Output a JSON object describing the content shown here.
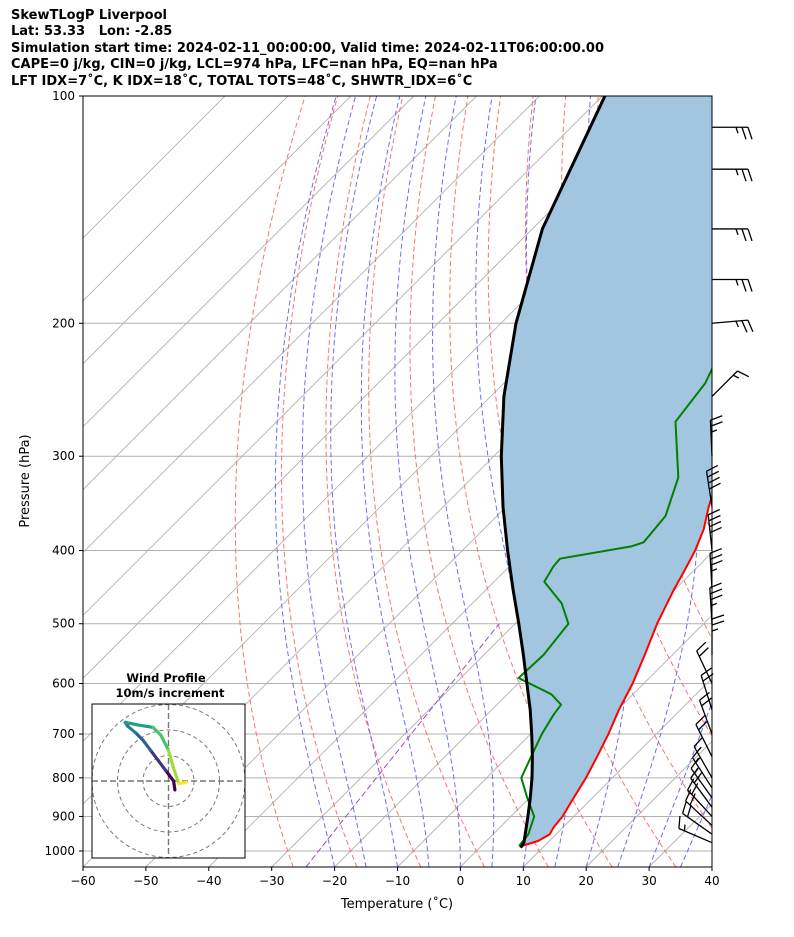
{
  "header": {
    "line1": "SkewTLogP Liverpool",
    "line2": "Lat: 53.33   Lon: -2.85",
    "line3": "Simulation start time: 2024-02-11_00:00:00, Valid time: 2024-02-11T06:00:00.00",
    "line4": "CAPE=0 j/kg, CIN=0 j/kg, LCL=974 hPa, LFC=nan hPa, EQ=nan hPa",
    "line5": "LFT IDX=7˚C, K IDX=18˚C, TOTAL TOTS=48˚C, SHWTR_IDX=6˚C"
  },
  "inset": {
    "title": "Wind Profile",
    "subtitle": "10m/s increment"
  },
  "colors": {
    "temperature": "#ff0000",
    "dewpoint": "#008000",
    "parcel": "#000000",
    "shading": "#a2c6e0",
    "dry_adiabat": "#ff7070",
    "moist_adiabat": "#6b6bff",
    "mixing_ratio": "#9b47c6",
    "isotherm": "#b0b0b0",
    "isobar": "#b0b0b0"
  },
  "chart_data": {
    "type": "line",
    "chart_kind": "skew-T log-P",
    "xlabel": "Temperature (˚C)",
    "ylabel": "Pressure (hPa)",
    "xlim": [
      -60,
      40
    ],
    "ylim": [
      1050,
      100
    ],
    "y_scale": "log",
    "x_ticks": [
      -60,
      -50,
      -40,
      -30,
      -20,
      -10,
      0,
      10,
      20,
      30,
      40
    ],
    "x_tick_labels": [
      "−60",
      "−50",
      "−40",
      "−30",
      "−20",
      "−10",
      "0",
      "10",
      "20",
      "30",
      "40"
    ],
    "y_ticks": [
      1000,
      900,
      800,
      700,
      600,
      500,
      400,
      300,
      200,
      100
    ],
    "y_tick_labels": [
      "1000",
      "900",
      "800",
      "700",
      "600",
      "500",
      "400",
      "300",
      "200",
      "100"
    ],
    "grid": true,
    "series": [
      {
        "name": "Temperature",
        "color": "#ff0000",
        "points": [
          [
            985,
            6.4
          ],
          [
            970,
            8.2
          ],
          [
            950,
            9.0
          ],
          [
            930,
            8.5
          ],
          [
            900,
            8.2
          ],
          [
            850,
            7.0
          ],
          [
            800,
            5.8
          ],
          [
            750,
            4.2
          ],
          [
            700,
            2.4
          ],
          [
            650,
            0.2
          ],
          [
            600,
            -1.8
          ],
          [
            550,
            -4.4
          ],
          [
            500,
            -7.4
          ],
          [
            450,
            -10.2
          ],
          [
            425,
            -11.5
          ],
          [
            400,
            -13.0
          ],
          [
            375,
            -15.0
          ],
          [
            350,
            -17.8
          ],
          [
            310,
            -22.1
          ],
          [
            300,
            -22.7
          ],
          [
            270,
            -25.6
          ],
          [
            250,
            -25.5
          ],
          [
            230,
            -24.6
          ],
          [
            210,
            -25.1
          ],
          [
            200,
            -25.2
          ],
          [
            185,
            -24.3
          ],
          [
            170,
            -22.8
          ],
          [
            150,
            -20.8
          ],
          [
            130,
            -19.7
          ],
          [
            115,
            -19.0
          ],
          [
            100,
            -18.3
          ]
        ]
      },
      {
        "name": "Dewpoint",
        "color": "#008000",
        "points": [
          [
            985,
            6.0
          ],
          [
            950,
            5.6
          ],
          [
            900,
            3.7
          ],
          [
            850,
            -0.4
          ],
          [
            800,
            -4.5
          ],
          [
            750,
            -6.3
          ],
          [
            700,
            -8.2
          ],
          [
            660,
            -9.4
          ],
          [
            640,
            -9.8
          ],
          [
            620,
            -13.0
          ],
          [
            590,
            -20.8
          ],
          [
            550,
            -20.5
          ],
          [
            500,
            -21.5
          ],
          [
            470,
            -25.8
          ],
          [
            440,
            -32.0
          ],
          [
            420,
            -33.0
          ],
          [
            410,
            -33.2
          ],
          [
            395,
            -23.8
          ],
          [
            390,
            -22.5
          ],
          [
            360,
            -23.2
          ],
          [
            320,
            -27.3
          ],
          [
            270,
            -36.6
          ],
          [
            240,
            -38.0
          ],
          [
            220,
            -40.4
          ],
          [
            200,
            -43.3
          ],
          [
            190,
            -45.9
          ],
          [
            175,
            -49.3
          ],
          [
            160,
            -51.7
          ],
          [
            140,
            -55.0
          ],
          [
            120,
            -58.0
          ],
          [
            100,
            -60.0
          ]
        ]
      },
      {
        "name": "Parcel",
        "color": "#000000",
        "points": [
          [
            990,
            6.5
          ],
          [
            974,
            6.2
          ],
          [
            900,
            2.7
          ],
          [
            850,
            0.1
          ],
          [
            800,
            -2.8
          ],
          [
            750,
            -6.1
          ],
          [
            700,
            -9.8
          ],
          [
            650,
            -13.9
          ],
          [
            600,
            -18.6
          ],
          [
            550,
            -23.7
          ],
          [
            500,
            -29.4
          ],
          [
            450,
            -35.8
          ],
          [
            400,
            -42.8
          ],
          [
            350,
            -50.5
          ],
          [
            300,
            -58.8
          ],
          [
            250,
            -67.9
          ],
          [
            200,
            -77.6
          ],
          [
            150,
            -88.4
          ],
          [
            100,
            -99.6
          ]
        ]
      }
    ],
    "wind_barbs": [
      {
        "pressure": 975,
        "u": -14,
        "v": 6
      },
      {
        "pressure": 950,
        "u": -17,
        "v": 12
      },
      {
        "pressure": 925,
        "u": -14,
        "v": 13
      },
      {
        "pressure": 900,
        "u": -12,
        "v": 13
      },
      {
        "pressure": 875,
        "u": -11,
        "v": 15
      },
      {
        "pressure": 850,
        "u": -10,
        "v": 14
      },
      {
        "pressure": 825,
        "u": -9,
        "v": 14
      },
      {
        "pressure": 800,
        "u": -8,
        "v": 14
      },
      {
        "pressure": 750,
        "u": -8,
        "v": 16
      },
      {
        "pressure": 700,
        "u": -7,
        "v": 19
      },
      {
        "pressure": 650,
        "u": -6,
        "v": 19
      },
      {
        "pressure": 600,
        "u": -8,
        "v": 17
      },
      {
        "pressure": 550,
        "u": 0,
        "v": 24
      },
      {
        "pressure": 500,
        "u": -2,
        "v": 33
      },
      {
        "pressure": 450,
        "u": -2,
        "v": 36
      },
      {
        "pressure": 400,
        "u": -4,
        "v": 38
      },
      {
        "pressure": 350,
        "u": -6,
        "v": 39
      },
      {
        "pressure": 300,
        "u": -1,
        "v": 23
      },
      {
        "pressure": 250,
        "u": 12,
        "v": 12
      },
      {
        "pressure": 200,
        "u": 23,
        "v": 2
      },
      {
        "pressure": 175,
        "u": 24,
        "v": 0
      },
      {
        "pressure": 150,
        "u": 24,
        "v": 0
      },
      {
        "pressure": 125,
        "u": 24,
        "v": 0
      },
      {
        "pressure": 110,
        "u": 24,
        "v": 0
      }
    ],
    "hodograph": {
      "rings": [
        10,
        20,
        30
      ],
      "points": [
        [
          2.5,
          -3.5
        ],
        [
          2.0,
          0.0
        ],
        [
          -1.0,
          4.0
        ],
        [
          -4.0,
          8.0
        ],
        [
          -7.0,
          12.0
        ],
        [
          -10.0,
          16.0
        ],
        [
          -13.0,
          19.0
        ],
        [
          -16.0,
          21.5
        ],
        [
          -17.0,
          23.0
        ],
        [
          -12.0,
          22.0
        ],
        [
          -6.0,
          21.0
        ],
        [
          -3.0,
          18.0
        ],
        [
          0.0,
          12.0
        ],
        [
          2.0,
          5.0
        ],
        [
          4.0,
          -1.0
        ],
        [
          7.0,
          -0.5
        ]
      ]
    }
  }
}
